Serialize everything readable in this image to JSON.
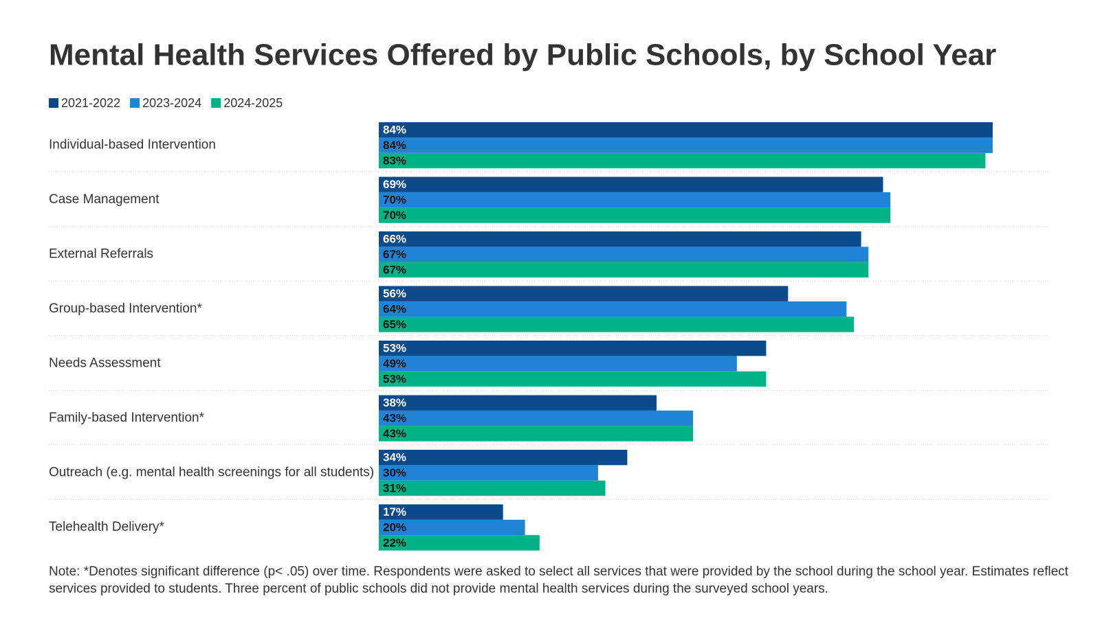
{
  "chart_data": {
    "type": "bar",
    "orientation": "horizontal",
    "title": "Mental Health Services Offered by Public Schools, by School Year",
    "categories": [
      "Individual-based Intervention",
      "Case Management",
      "External Referrals",
      "Group-based Intervention*",
      "Needs Assessment",
      "Family-based Intervention*",
      "Outreach (e.g. mental health screenings for all students)",
      "Telehealth Delivery*"
    ],
    "series": [
      {
        "name": "2021-2022",
        "color": "#0b4a8b",
        "values": [
          84,
          69,
          66,
          56,
          53,
          38,
          34,
          17
        ],
        "value_labels": [
          "84%",
          "69%",
          "66%",
          "56%",
          "53%",
          "38%",
          "34%",
          "17%"
        ]
      },
      {
        "name": "2023-2024",
        "color": "#1f84d6",
        "values": [
          84,
          70,
          67,
          64,
          49,
          43,
          30,
          20
        ],
        "value_labels": [
          "84%",
          "70%",
          "67%",
          "64%",
          "49%",
          "43%",
          "30%",
          "20%"
        ]
      },
      {
        "name": "2024-2025",
        "color": "#00b386",
        "values": [
          83,
          70,
          67,
          65,
          53,
          43,
          31,
          22
        ],
        "value_labels": [
          "83%",
          "70%",
          "67%",
          "65%",
          "53%",
          "43%",
          "31%",
          "22%"
        ]
      }
    ],
    "legend": "top-left",
    "note": "Note: *Denotes significant difference (p< .05) over time. Respondents were asked to select all services that were provided by the school during the school year. Estimates reflect services provided to students. Three percent of public schools did not provide mental health services during the surveyed school years."
  }
}
